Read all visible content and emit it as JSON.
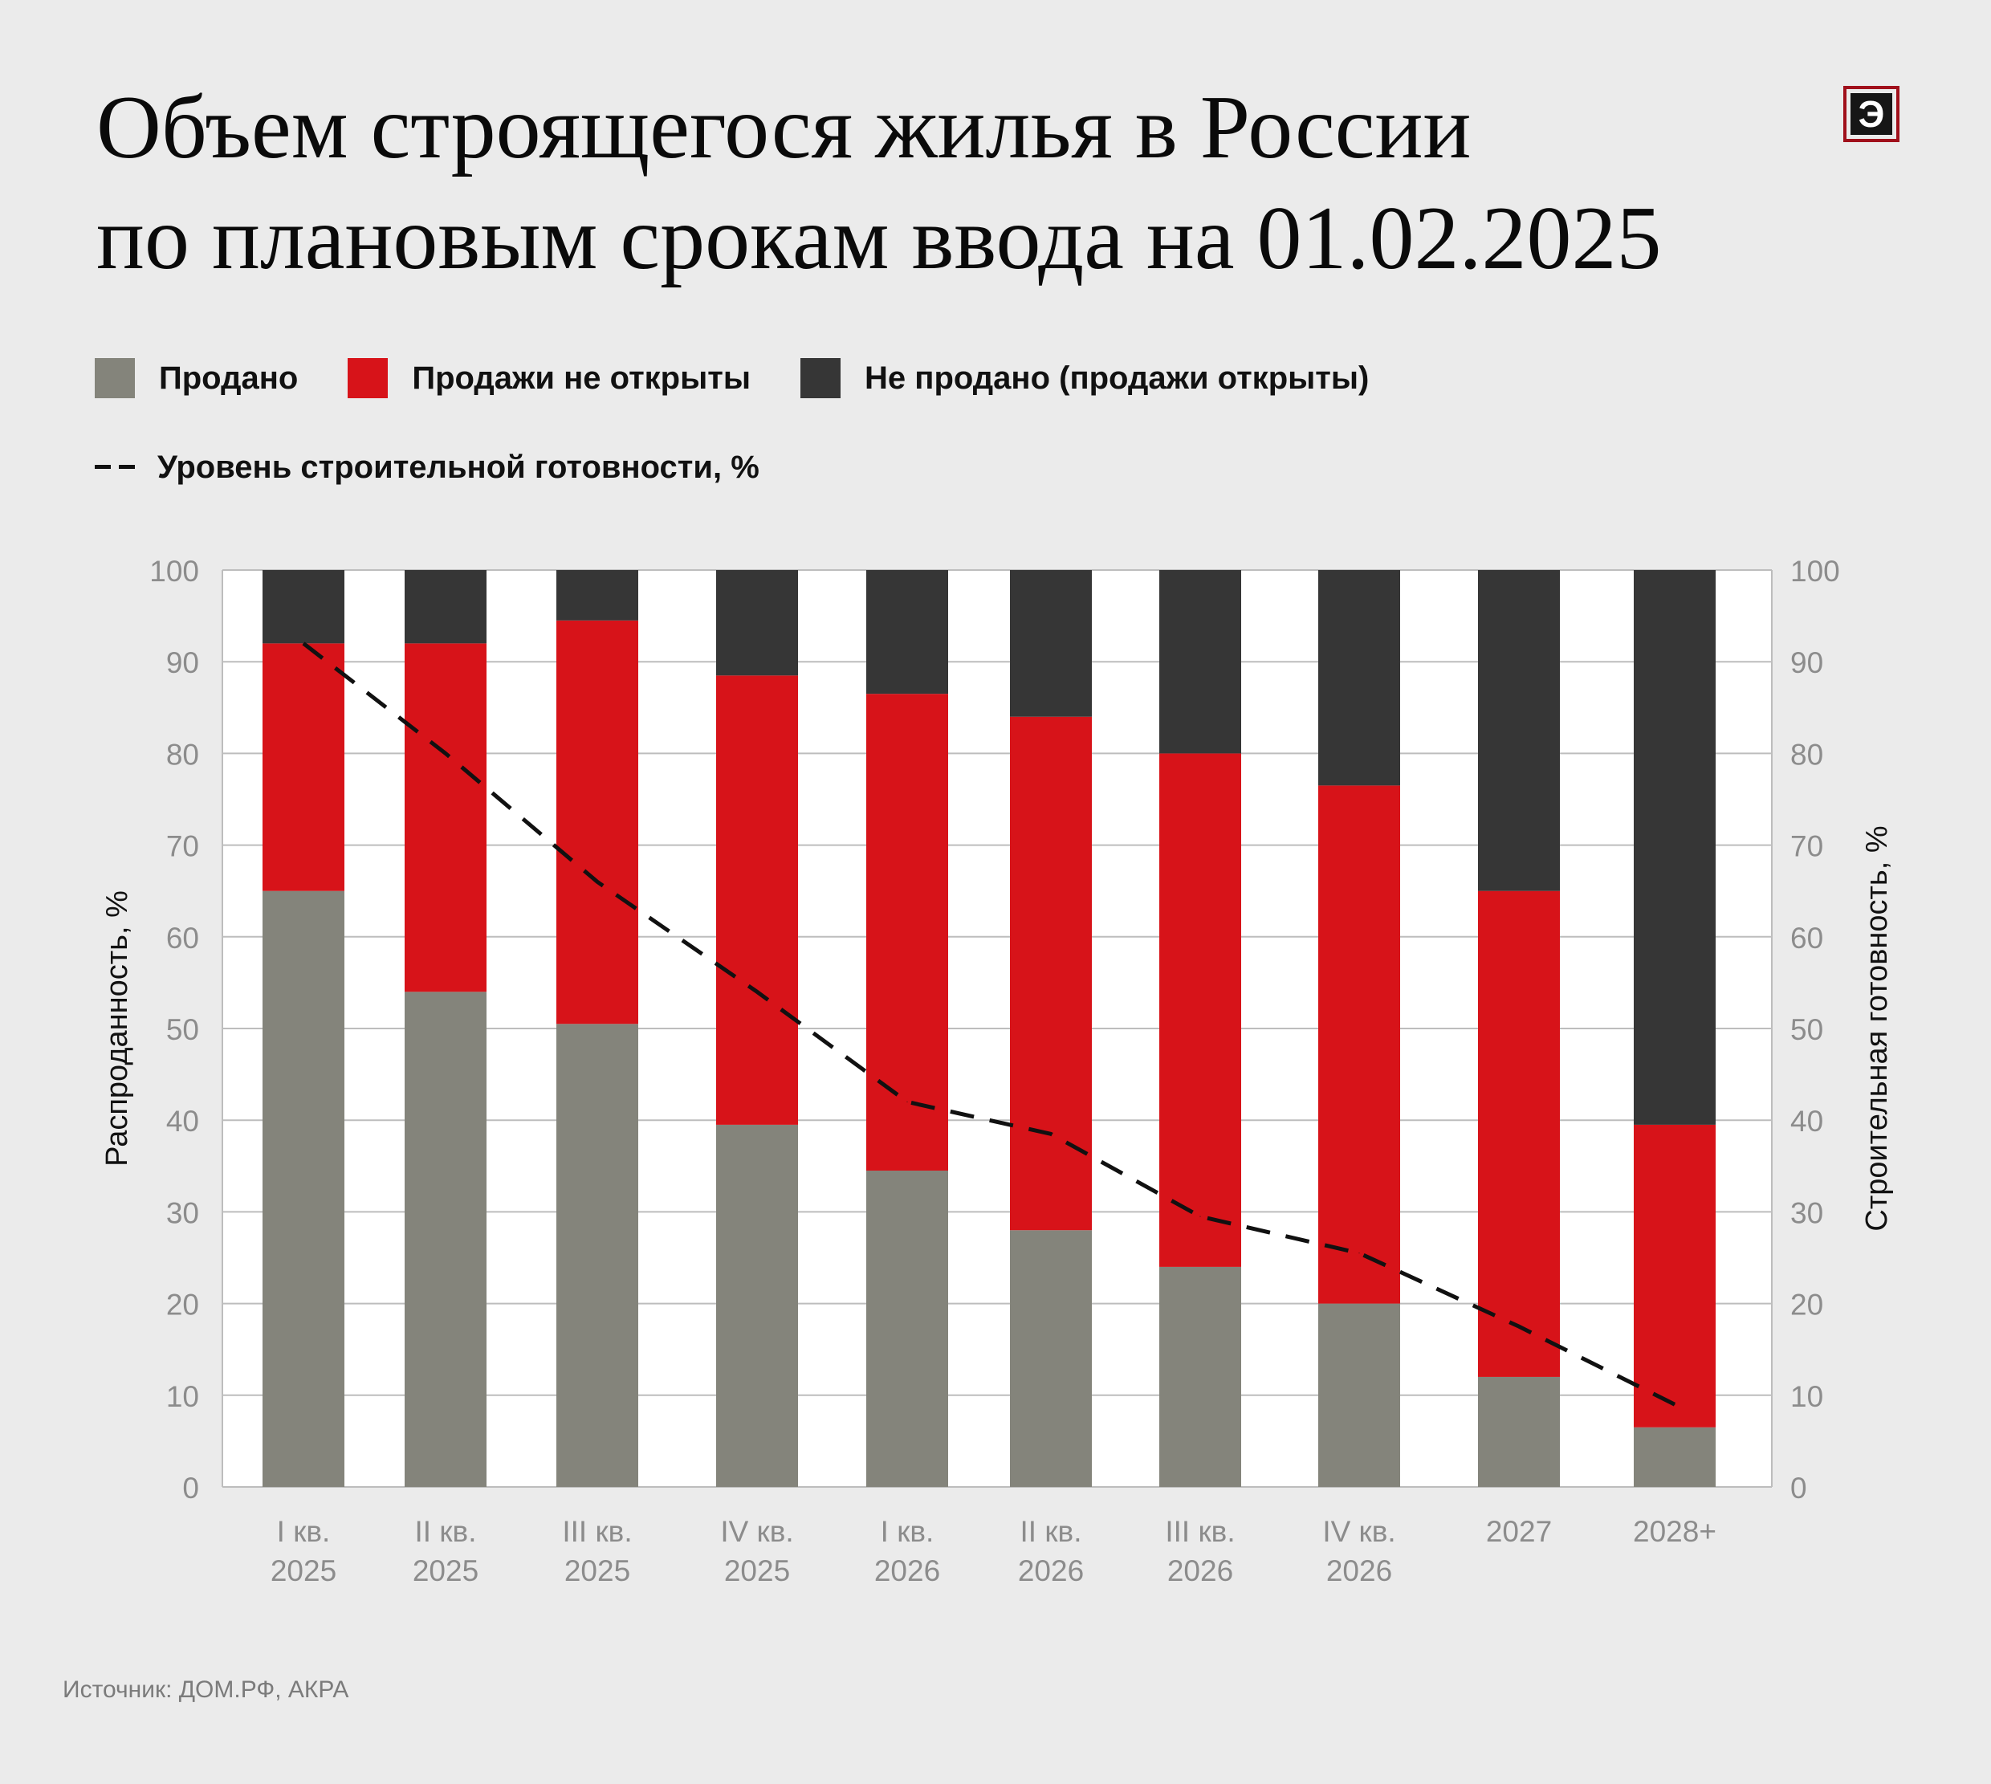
{
  "title_lines": [
    "Объем строящегося жилья в России",
    "по плановым срокам ввода на 01.02.2025"
  ],
  "logo_letter": "Э",
  "legend": [
    {
      "label": "Продано",
      "color": "#84847b"
    },
    {
      "label": "Продажи не открыты",
      "color": "#d71319"
    },
    {
      "label": "Не продано (продажи открыты)",
      "color": "#363636"
    }
  ],
  "line_legend": {
    "label": "Уровень строительной готовности, %"
  },
  "source": "Источник: ДОМ.РФ, АКРА",
  "chart_data": {
    "type": "bar",
    "stacked": true,
    "categories": [
      [
        "I кв.",
        "2025"
      ],
      [
        "II кв.",
        "2025"
      ],
      [
        "III кв.",
        "2025"
      ],
      [
        "IV кв.",
        "2025"
      ],
      [
        "I кв.",
        "2026"
      ],
      [
        "II кв.",
        "2026"
      ],
      [
        "III кв.",
        "2026"
      ],
      [
        "IV кв.",
        "2026"
      ],
      [
        "2027"
      ],
      [
        "2028+"
      ]
    ],
    "series": [
      {
        "name": "Продано",
        "color": "#84847b",
        "values": [
          65,
          54,
          50.5,
          39.5,
          34.5,
          28,
          24,
          20,
          12,
          6.5
        ]
      },
      {
        "name": "Продажи не открыты",
        "color": "#d71319",
        "values": [
          27,
          38,
          44,
          49,
          52,
          56,
          56,
          56.5,
          53,
          33
        ]
      },
      {
        "name": "Не продано (продажи открыты)",
        "color": "#363636",
        "values": [
          8,
          8,
          5.5,
          11.5,
          13.5,
          16,
          20,
          23.5,
          35,
          60.5
        ]
      }
    ],
    "line": {
      "name": "Уровень строительной готовности, %",
      "axis": "right",
      "color": "#111111",
      "values": [
        92,
        80,
        66,
        54,
        42,
        38.5,
        29.5,
        25.5,
        17.5,
        9
      ]
    },
    "ylabel": "Распроданность, %",
    "y2label": "Строительная готовность, %",
    "ylim": [
      0,
      100
    ],
    "y2lim": [
      0,
      100
    ],
    "yticks": [
      0,
      10,
      20,
      30,
      40,
      50,
      60,
      70,
      80,
      90,
      100
    ],
    "grid": true
  }
}
